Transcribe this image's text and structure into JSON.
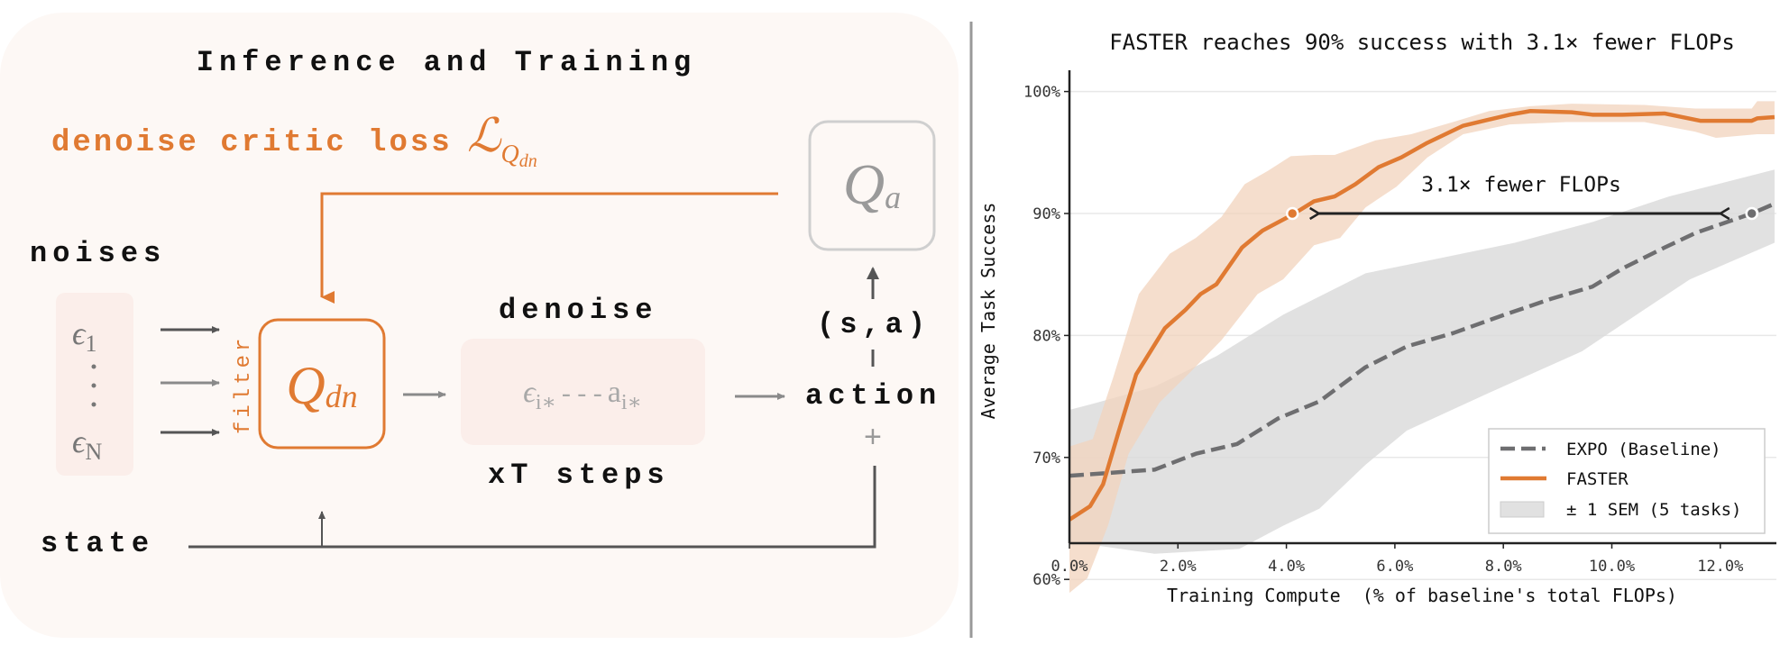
{
  "diagram": {
    "title": "Inference and Training",
    "loss_label": "denoise critic loss",
    "loss_symbol": "ℒ",
    "loss_subscript": "Q",
    "loss_subsub": "dn",
    "qa_symbol": "Q",
    "qa_sub": "a",
    "noises_label": "noises",
    "eps_symbol": "ϵ",
    "eps_first_sub": "1",
    "eps_last_sub": "N",
    "filter_label": "filter",
    "qdn_symbol": "Q",
    "qdn_sub": "dn",
    "denoise_label": "denoise",
    "eps_i_sub": "i∗",
    "chain_dashes": "- - -",
    "a_symbol": "a",
    "a_i_sub": "i∗",
    "steps_label": "xT steps",
    "sa_label": "(s,a)",
    "action_label": "action",
    "plus_label": "+",
    "state_label": "state",
    "colors": {
      "accent": "#e07a32",
      "panel_bg": "#fdf8f5",
      "inner_bg": "#fbeeea",
      "arrow": "#555555",
      "muted": "#999999"
    }
  },
  "chart_data": {
    "type": "line",
    "title": "FASTER reaches 90% success with 3.1× fewer FLOPs",
    "xlabel": "Training Compute  (% of baseline's total FLOPs)",
    "ylabel": "Average Task Success",
    "xlim": [
      0,
      13
    ],
    "ylim": [
      55,
      102
    ],
    "xticks": [
      0,
      2,
      4,
      6,
      8,
      10,
      12
    ],
    "xtick_labels": [
      "0.0%",
      "2.0%",
      "4.0%",
      "6.0%",
      "8.0%",
      "10.0%",
      "12.0%"
    ],
    "yticks": [
      60,
      70,
      80,
      90,
      100
    ],
    "ytick_labels": [
      "60%",
      "70%",
      "80%",
      "90%",
      "100%"
    ],
    "grid": "horizontal",
    "legend_placement": "lower-right",
    "series": [
      {
        "name": "EXPO (Baseline)",
        "color": "#6e6e70",
        "style": "dashed",
        "x": [
          0,
          1.57,
          2.33,
          3.09,
          3.85,
          4.61,
          5.46,
          6.22,
          7.08,
          8.02,
          8.88,
          9.64,
          10.2,
          10.97,
          11.54,
          12.58,
          13
        ],
        "y": [
          68.5,
          69.0,
          70.3,
          71.1,
          73.2,
          74.6,
          77.4,
          79.1,
          80.2,
          81.7,
          83.0,
          84.0,
          85.5,
          87.2,
          88.4,
          90.0,
          90.8
        ],
        "band_x_upper": [
          0,
          0.43,
          1.57,
          2.71,
          3.94,
          5.46,
          6.79,
          8.21,
          9.64,
          11.06,
          13
        ],
        "band_upper": [
          73.9,
          74.4,
          75.8,
          78.3,
          81.7,
          85.1,
          86.3,
          87.6,
          89.3,
          91.4,
          93.6
        ],
        "band_x_lower": [
          0,
          1.57,
          3.13,
          3.94,
          4.61,
          5.46,
          6.22,
          7.74,
          9.45,
          10.59,
          11.44,
          13
        ],
        "band_lower": [
          63.1,
          62.1,
          62.5,
          64.4,
          65.8,
          69.4,
          72.2,
          75.3,
          78.7,
          82.1,
          84.6,
          87.6
        ],
        "band_color": "#d9dada"
      },
      {
        "name": "FASTER",
        "color": "#e07a32",
        "style": "solid",
        "x": [
          0,
          0.38,
          0.62,
          0.9,
          1.23,
          1.76,
          2.14,
          2.42,
          2.71,
          3.18,
          3.56,
          4.11,
          4.51,
          4.89,
          5.27,
          5.7,
          6.12,
          6.6,
          7.26,
          8.12,
          8.5,
          9.26,
          9.64,
          10.2,
          10.97,
          11.63,
          12.58,
          12.68,
          13
        ],
        "y": [
          64.9,
          66.0,
          67.8,
          72.0,
          76.8,
          80.6,
          82.1,
          83.4,
          84.2,
          87.2,
          88.6,
          89.9,
          91.0,
          91.4,
          92.4,
          93.8,
          94.6,
          95.8,
          97.2,
          98.1,
          98.4,
          98.3,
          98.1,
          98.1,
          98.2,
          97.6,
          97.6,
          97.8,
          97.9
        ],
        "band_x_upper": [
          0,
          0.43,
          0.81,
          1.28,
          1.85,
          2.33,
          2.8,
          3.23,
          3.66,
          4.08,
          4.51,
          4.89,
          5.65,
          6.3,
          7.07,
          7.74,
          8.5,
          9.26,
          10.6,
          11.54,
          12.58,
          12.68,
          13
        ],
        "band_upper": [
          70.9,
          71.5,
          76.6,
          83.4,
          86.7,
          88.0,
          89.7,
          92.4,
          93.5,
          94.7,
          94.8,
          94.8,
          96.0,
          96.5,
          97.5,
          98.4,
          98.8,
          99.0,
          98.9,
          98.6,
          98.6,
          99.2,
          99.2
        ],
        "band_x_lower": [
          0,
          0.33,
          0.71,
          1.09,
          1.66,
          2.23,
          2.8,
          3.47,
          3.94,
          4.51,
          4.99,
          5.46,
          6.03,
          6.6,
          7.26,
          8.12,
          9.17,
          10.6,
          11.54,
          11.92,
          12.68,
          13
        ],
        "band_lower": [
          58.9,
          60.1,
          64.4,
          70.3,
          74.5,
          77.0,
          79.6,
          83.4,
          84.6,
          87.4,
          88.0,
          90.5,
          92.2,
          94.6,
          96.5,
          97.3,
          97.5,
          97.5,
          96.7,
          96.2,
          96.5,
          96.5
        ],
        "band_color": "#f2d3bc"
      }
    ],
    "band_legend": "± 1 SEM (5 tasks)",
    "markers": [
      {
        "x": 4.11,
        "y": 90,
        "color": "#e07a32"
      },
      {
        "x": 12.58,
        "y": 90,
        "color": "#6e6e70"
      }
    ],
    "annotation": {
      "text": "3.1× fewer FLOPs",
      "x": 8.33,
      "y": 92.4,
      "arrow_from": 4.6,
      "arrow_to": 12.0,
      "arrow_y": 90
    }
  }
}
